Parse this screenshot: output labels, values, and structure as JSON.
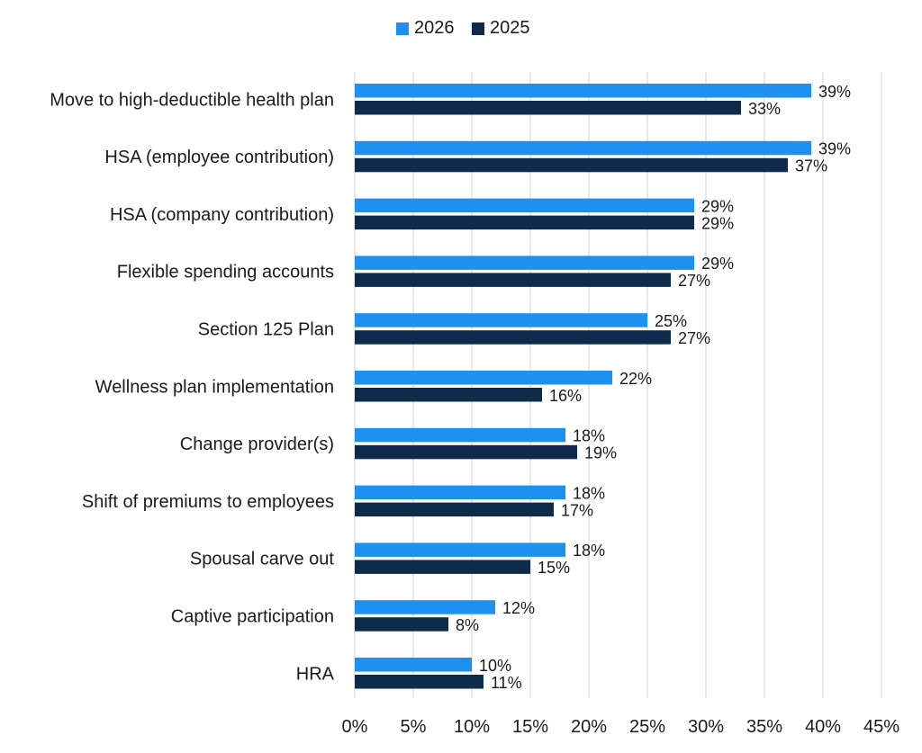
{
  "chart_data": {
    "type": "bar",
    "orientation": "horizontal",
    "categories": [
      "Move to high-deductible health plan",
      "HSA (employee contribution)",
      "HSA (company contribution)",
      "Flexible spending accounts",
      "Section 125 Plan",
      "Wellness plan implementation",
      "Change provider(s)",
      "Shift of premiums to employees",
      "Spousal carve out",
      "Captive participation",
      "HRA"
    ],
    "series": [
      {
        "name": "2026",
        "color": "#1e90f0",
        "values": [
          39,
          39,
          29,
          29,
          25,
          22,
          18,
          18,
          18,
          12,
          10
        ],
        "labels": [
          "39%",
          "39%",
          "29%",
          "29%",
          "25%",
          "22%",
          "18%",
          "18%",
          "18%",
          "12%",
          "10%"
        ]
      },
      {
        "name": "2025",
        "color": "#102a4c",
        "values": [
          33,
          37,
          29,
          27,
          27,
          16,
          19,
          17,
          15,
          8,
          11
        ],
        "labels": [
          "33%",
          "37%",
          "29%",
          "27%",
          "27%",
          "16%",
          "19%",
          "17%",
          "15%",
          "8%",
          "11%"
        ]
      }
    ],
    "xlim": [
      0,
      45
    ],
    "xticks": [
      "0%",
      "5%",
      "10%",
      "15%",
      "20%",
      "25%",
      "30%",
      "35%",
      "40%",
      "45%"
    ],
    "grid": "vertical",
    "legend_position": "top"
  }
}
